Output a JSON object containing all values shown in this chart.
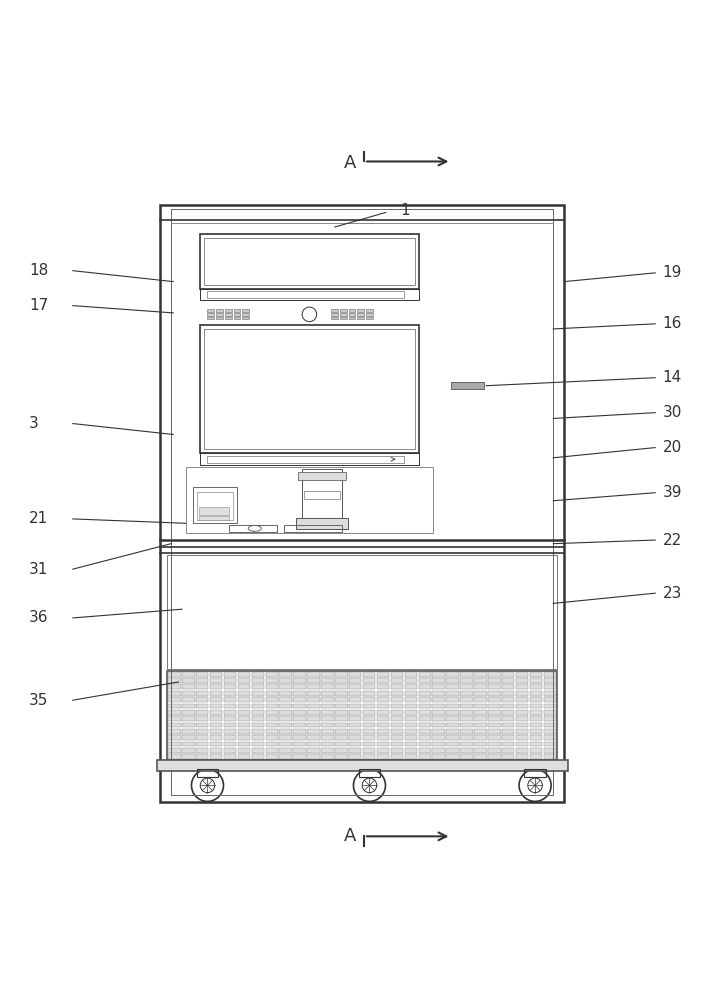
{
  "bg_color": "#ffffff",
  "line_color": "#333333",
  "light_gray": "#aaaaaa",
  "mid_gray": "#888888",
  "dark_gray": "#555555",
  "hatch_color": "#999999"
}
